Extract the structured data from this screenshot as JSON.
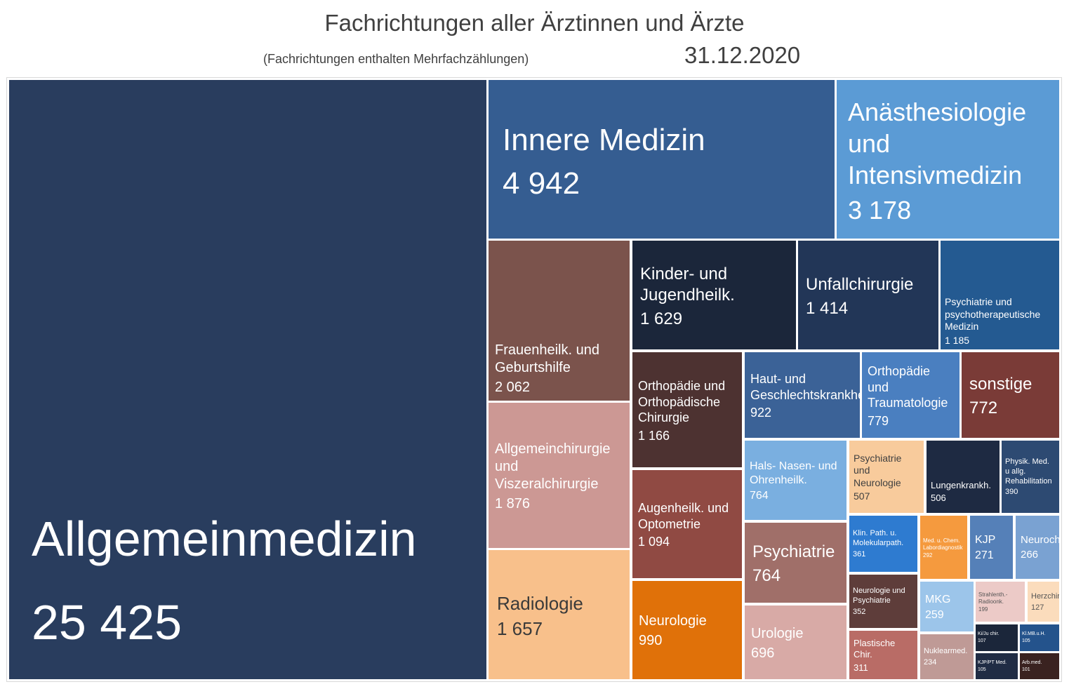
{
  "title": "Fachrichtungen aller Ärztinnen und Ärzte",
  "subtitle": "(Fachrichtungen enthalten Mehrfachzählungen)",
  "date": "31.12.2020",
  "chart_data": {
    "type": "treemap",
    "title": "Fachrichtungen aller Ärztinnen und Ärzte",
    "subtitle": "(Fachrichtungen enthalten Mehrfachzählungen)",
    "date": "31.12.2020",
    "series": [
      {
        "label": "Allgemeinmedizin",
        "value_text": "25 425",
        "value": 25425,
        "color": "#293d5e",
        "text_color": "#ffffff"
      },
      {
        "label": "Innere Medizin",
        "value_text": "4 942",
        "value": 4942,
        "color": "#355d91",
        "text_color": "#ffffff"
      },
      {
        "label": "Anästhesiologie und Intensivmedizin",
        "value_text": "3 178",
        "value": 3178,
        "color": "#5b9bd5",
        "text_color": "#ffffff"
      },
      {
        "label": "Frauenheilk. und Geburtshilfe",
        "value_text": "2 062",
        "value": 2062,
        "color": "#7b534c",
        "text_color": "#ffffff"
      },
      {
        "label": "Allgemeinchirurgie und Viszeralchirurgie",
        "value_text": "1 876",
        "value": 1876,
        "color": "#cc9894",
        "text_color": "#ffffff"
      },
      {
        "label": "Radiologie",
        "value_text": "1 657",
        "value": 1657,
        "color": "#f8c08b",
        "text_color": "#3a3a3a"
      },
      {
        "label": "Kinder- und Jugendheilk.",
        "value_text": "1 629",
        "value": 1629,
        "color": "#1b263a",
        "text_color": "#ffffff"
      },
      {
        "label": "Unfallchirurgie",
        "value_text": "1 414",
        "value": 1414,
        "color": "#223657",
        "text_color": "#ffffff"
      },
      {
        "label": "Psychiatrie und psychotherapeutische Medizin",
        "value_text": "1 185",
        "value": 1185,
        "color": "#245a91",
        "text_color": "#ffffff"
      },
      {
        "label": "Orthopädie und Orthopädische Chirurgie",
        "value_text": "1 166",
        "value": 1166,
        "color": "#4d3231",
        "text_color": "#ffffff"
      },
      {
        "label": "Augenheilk. und Optometrie",
        "value_text": "1 094",
        "value": 1094,
        "color": "#904a43",
        "text_color": "#ffffff"
      },
      {
        "label": "Neurologie",
        "value_text": "990",
        "value": 990,
        "color": "#e07109",
        "text_color": "#ffffff"
      },
      {
        "label": "Haut- und Geschlechtskrankheiten",
        "value_text": "922",
        "value": 922,
        "color": "#3b6297",
        "text_color": "#ffffff"
      },
      {
        "label": "Orthopädie und Traumatologie",
        "value_text": "779",
        "value": 779,
        "color": "#4a7fc0",
        "text_color": "#ffffff"
      },
      {
        "label": "sonstige",
        "value_text": "772",
        "value": 772,
        "color": "#7a3b37",
        "text_color": "#ffffff"
      },
      {
        "label": "Hals- Nasen- und Ohrenheilk.",
        "value_text": "764",
        "value": 764,
        "color": "#7aafe0",
        "text_color": "#ffffff"
      },
      {
        "label": "Psychiatrie",
        "value_text": "764",
        "value": 764,
        "color": "#a06f69",
        "text_color": "#ffffff"
      },
      {
        "label": "Urologie",
        "value_text": "696",
        "value": 696,
        "color": "#d8aaa6",
        "text_color": "#ffffff"
      },
      {
        "label": "Psychiatrie und Neurologie",
        "value_text": "507",
        "value": 507,
        "color": "#f8cb9c",
        "text_color": "#404040"
      },
      {
        "label": "Lungenkrankh.",
        "value_text": "506",
        "value": 506,
        "color": "#1e2a42",
        "text_color": "#ffffff"
      },
      {
        "label": "Physik. Med. u allg. Rehabilitation",
        "value_text": "390",
        "value": 390,
        "color": "#2d4a72",
        "text_color": "#ffffff"
      },
      {
        "label": "Klin. Path. u. Molekularpath.",
        "value_text": "361",
        "value": 361,
        "color": "#2e7bd0",
        "text_color": "#ffffff"
      },
      {
        "label": "Med. u. Chem. Labordiagnostik",
        "value_text": "292",
        "value": 292,
        "color": "#f59a3e",
        "text_color": "#ffffff"
      },
      {
        "label": "KJP",
        "value_text": "271",
        "value": 271,
        "color": "#5580b8",
        "text_color": "#ffffff"
      },
      {
        "label": "Neurochir.",
        "value_text": "266",
        "value": 266,
        "color": "#7aa2d2",
        "text_color": "#ffffff"
      },
      {
        "label": "Neurologie und Psychiatrie",
        "value_text": "352",
        "value": 352,
        "color": "#5e3d3a",
        "text_color": "#ffffff"
      },
      {
        "label": "Plastische Chir.",
        "value_text": "311",
        "value": 311,
        "color": "#b96c66",
        "text_color": "#ffffff"
      },
      {
        "label": "MKG",
        "value_text": "259",
        "value": 259,
        "color": "#9cc5ea",
        "text_color": "#ffffff"
      },
      {
        "label": "Strahlenth.- Radioonk.",
        "value_text": "199",
        "value": 199,
        "color": "#eccac7",
        "text_color": "#555555"
      },
      {
        "label": "Herzchir.",
        "value_text": "127",
        "value": 127,
        "color": "#fbdcbc",
        "text_color": "#555555"
      },
      {
        "label": "Nuklearmed.",
        "value_text": "234",
        "value": 234,
        "color": "#bf9a96",
        "text_color": "#ffffff"
      },
      {
        "label": "Ki/Ju chir.",
        "value_text": "107",
        "value": 107,
        "color": "#1b263a",
        "text_color": "#ffffff"
      },
      {
        "label": "Kl.MB.u.H.",
        "value_text": "105",
        "value": 105,
        "color": "#24538c",
        "text_color": "#ffffff"
      },
      {
        "label": "KJP/PT Med.",
        "value_text": "105",
        "value": 105,
        "color": "#202c44",
        "text_color": "#ffffff"
      },
      {
        "label": "Arb.med.",
        "value_text": "101",
        "value": 101,
        "color": "#3a2220",
        "text_color": "#ffffff"
      }
    ]
  }
}
